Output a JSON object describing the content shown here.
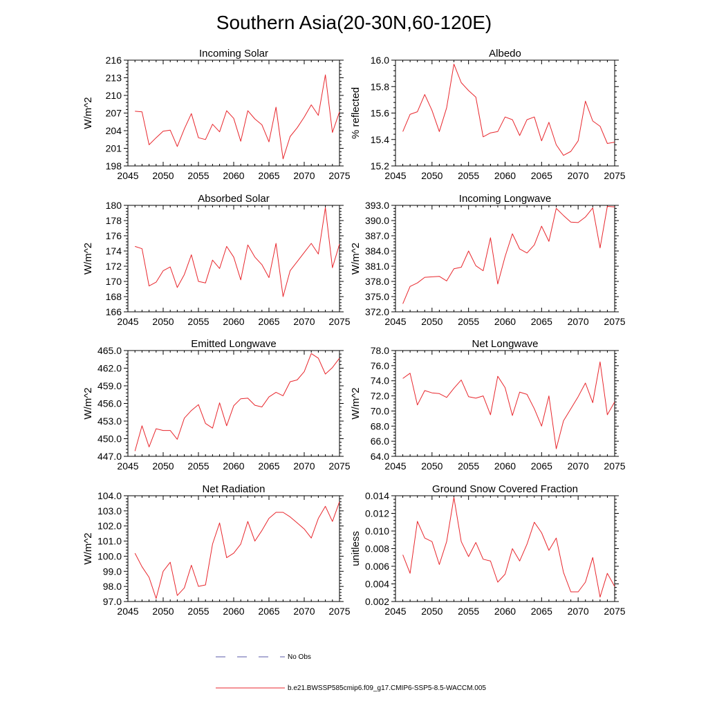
{
  "figure": {
    "title": "Southern Asia(20-30N,60-120E)",
    "series_color": "#e8262c",
    "obs_color": "#5a5aa8",
    "legend": [
      {
        "style": "dashed",
        "label": "No Obs"
      },
      {
        "style": "solid",
        "label": "b.e21.BWSSP585cmip6.f09_g17.CMIP6-SSP5-8.5-WACCM.005"
      }
    ]
  },
  "chart_data": [
    {
      "type": "line",
      "title": "Incoming Solar",
      "xlabel": "",
      "ylabel": "W/m^2",
      "xlim": [
        2045,
        2075
      ],
      "ylim": [
        198,
        216
      ],
      "xticks": [
        2045,
        2050,
        2055,
        2060,
        2065,
        2070,
        2075
      ],
      "yticks": [
        198,
        201,
        204,
        207,
        210,
        213,
        216
      ],
      "ytick_labels": [
        "198",
        "201",
        "204",
        "207",
        "210",
        "213",
        "216"
      ],
      "x": [
        2046,
        2047,
        2048,
        2049,
        2050,
        2051,
        2052,
        2053,
        2054,
        2055,
        2056,
        2057,
        2058,
        2059,
        2060,
        2061,
        2062,
        2063,
        2064,
        2065,
        2066,
        2067,
        2068,
        2069,
        2070,
        2071,
        2072,
        2073,
        2074,
        2075
      ],
      "values": [
        207.3,
        207.2,
        201.6,
        202.8,
        203.9,
        204.1,
        201.3,
        204.3,
        206.9,
        202.8,
        202.5,
        205.1,
        203.8,
        207.4,
        206.1,
        202.2,
        207.4,
        206.0,
        205.0,
        202.1,
        208.0,
        199.2,
        203.0,
        204.5,
        206.3,
        208.4,
        206.6,
        213.5,
        203.7,
        207.2
      ]
    },
    {
      "type": "line",
      "title": "Albedo",
      "xlabel": "",
      "ylabel": "% reflected",
      "xlim": [
        2045,
        2075
      ],
      "ylim": [
        15.2,
        16.0
      ],
      "xticks": [
        2045,
        2050,
        2055,
        2060,
        2065,
        2070,
        2075
      ],
      "yticks": [
        15.2,
        15.4,
        15.6,
        15.8,
        16.0
      ],
      "ytick_labels": [
        "15.2",
        "15.4",
        "15.6",
        "15.8",
        "16.0"
      ],
      "x": [
        2046,
        2047,
        2048,
        2049,
        2050,
        2051,
        2052,
        2053,
        2054,
        2055,
        2056,
        2057,
        2058,
        2059,
        2060,
        2061,
        2062,
        2063,
        2064,
        2065,
        2066,
        2067,
        2068,
        2069,
        2070,
        2071,
        2072,
        2073,
        2074,
        2075
      ],
      "values": [
        15.46,
        15.59,
        15.61,
        15.74,
        15.62,
        15.46,
        15.64,
        15.97,
        15.83,
        15.77,
        15.72,
        15.42,
        15.45,
        15.46,
        15.57,
        15.55,
        15.43,
        15.55,
        15.57,
        15.39,
        15.53,
        15.36,
        15.28,
        15.31,
        15.39,
        15.69,
        15.54,
        15.5,
        15.37,
        15.38
      ]
    },
    {
      "type": "line",
      "title": "Absorbed Solar",
      "xlabel": "",
      "ylabel": "W/m^2",
      "xlim": [
        2045,
        2075
      ],
      "ylim": [
        166,
        180
      ],
      "xticks": [
        2045,
        2050,
        2055,
        2060,
        2065,
        2070,
        2075
      ],
      "yticks": [
        166,
        168,
        170,
        172,
        174,
        176,
        178,
        180
      ],
      "ytick_labels": [
        "166",
        "168",
        "170",
        "172",
        "174",
        "176",
        "178",
        "180"
      ],
      "x": [
        2046,
        2047,
        2048,
        2049,
        2050,
        2051,
        2052,
        2053,
        2054,
        2055,
        2056,
        2057,
        2058,
        2059,
        2060,
        2061,
        2062,
        2063,
        2064,
        2065,
        2066,
        2067,
        2068,
        2069,
        2070,
        2071,
        2072,
        2073,
        2074,
        2075
      ],
      "values": [
        174.6,
        174.3,
        169.4,
        169.9,
        171.4,
        171.9,
        169.2,
        170.9,
        173.5,
        170.0,
        169.8,
        172.8,
        171.7,
        174.6,
        173.2,
        170.2,
        174.8,
        173.2,
        172.2,
        170.5,
        175.0,
        168.0,
        171.4,
        172.6,
        173.8,
        175.0,
        173.6,
        179.7,
        171.8,
        174.9
      ]
    },
    {
      "type": "line",
      "title": "Incoming Longwave",
      "xlabel": "",
      "ylabel": "W/m^2",
      "xlim": [
        2045,
        2075
      ],
      "ylim": [
        372.0,
        393.0
      ],
      "xticks": [
        2045,
        2050,
        2055,
        2060,
        2065,
        2070,
        2075
      ],
      "yticks": [
        372,
        375,
        378,
        381,
        384,
        387,
        390,
        393
      ],
      "ytick_labels": [
        "372.0",
        "375.0",
        "378.0",
        "381.0",
        "384.0",
        "387.0",
        "390.0",
        "393.0"
      ],
      "x": [
        2046,
        2047,
        2048,
        2049,
        2050,
        2051,
        2052,
        2053,
        2054,
        2055,
        2056,
        2057,
        2058,
        2059,
        2060,
        2061,
        2062,
        2063,
        2064,
        2065,
        2066,
        2067,
        2068,
        2069,
        2070,
        2071,
        2072,
        2073,
        2074,
        2075
      ],
      "values": [
        373.6,
        377.0,
        377.7,
        378.8,
        378.9,
        379.0,
        378.1,
        380.5,
        380.8,
        384.0,
        381.1,
        380.1,
        386.6,
        377.5,
        382.9,
        387.4,
        384.4,
        383.6,
        385.2,
        388.9,
        385.9,
        392.4,
        391.0,
        389.7,
        389.6,
        390.7,
        392.5,
        384.6,
        392.8,
        392.7
      ]
    },
    {
      "type": "line",
      "title": "Emitted Longwave",
      "xlabel": "",
      "ylabel": "W/m^2",
      "xlim": [
        2045,
        2075
      ],
      "ylim": [
        447.0,
        465.0
      ],
      "xticks": [
        2045,
        2050,
        2055,
        2060,
        2065,
        2070,
        2075
      ],
      "yticks": [
        447,
        450,
        453,
        456,
        459,
        462,
        465
      ],
      "ytick_labels": [
        "447.0",
        "450.0",
        "453.0",
        "456.0",
        "459.0",
        "462.0",
        "465.0"
      ],
      "x": [
        2046,
        2047,
        2048,
        2049,
        2050,
        2051,
        2052,
        2053,
        2054,
        2055,
        2056,
        2057,
        2058,
        2059,
        2060,
        2061,
        2062,
        2063,
        2064,
        2065,
        2066,
        2067,
        2068,
        2069,
        2070,
        2071,
        2072,
        2073,
        2074,
        2075
      ],
      "values": [
        447.9,
        452.2,
        448.6,
        451.7,
        451.4,
        451.4,
        449.9,
        453.5,
        454.8,
        455.8,
        452.6,
        451.8,
        456.1,
        452.2,
        455.6,
        456.8,
        456.9,
        455.7,
        455.4,
        457.1,
        457.9,
        457.3,
        459.7,
        460.0,
        461.4,
        464.5,
        463.7,
        461.0,
        462.1,
        463.7
      ]
    },
    {
      "type": "line",
      "title": "Net Longwave",
      "xlabel": "",
      "ylabel": "W/m^2",
      "xlim": [
        2045,
        2075
      ],
      "ylim": [
        64.0,
        78.0
      ],
      "xticks": [
        2045,
        2050,
        2055,
        2060,
        2065,
        2070,
        2075
      ],
      "yticks": [
        64,
        66,
        68,
        70,
        72,
        74,
        76,
        78
      ],
      "ytick_labels": [
        "64.0",
        "66.0",
        "68.0",
        "70.0",
        "72.0",
        "74.0",
        "76.0",
        "78.0"
      ],
      "x": [
        2046,
        2047,
        2048,
        2049,
        2050,
        2051,
        2052,
        2053,
        2054,
        2055,
        2056,
        2057,
        2058,
        2059,
        2060,
        2061,
        2062,
        2063,
        2064,
        2065,
        2066,
        2067,
        2068,
        2069,
        2070,
        2071,
        2072,
        2073,
        2074,
        2075
      ],
      "values": [
        74.3,
        75.0,
        70.8,
        72.7,
        72.4,
        72.3,
        71.8,
        73.0,
        74.1,
        71.9,
        71.7,
        72.0,
        69.5,
        74.6,
        73.1,
        69.4,
        72.5,
        72.2,
        70.3,
        68.0,
        72.0,
        65.0,
        68.7,
        70.3,
        71.9,
        73.7,
        71.1,
        76.5,
        69.5,
        71.2
      ]
    },
    {
      "type": "line",
      "title": "Net Radiation",
      "xlabel": "",
      "ylabel": "W/m^2",
      "xlim": [
        2045,
        2075
      ],
      "ylim": [
        97.0,
        104.0
      ],
      "xticks": [
        2045,
        2050,
        2055,
        2060,
        2065,
        2070,
        2075
      ],
      "yticks": [
        97,
        98,
        99,
        100,
        101,
        102,
        103,
        104
      ],
      "ytick_labels": [
        "97.0",
        "98.0",
        "99.0",
        "100.0",
        "101.0",
        "102.0",
        "103.0",
        "104.0"
      ],
      "x": [
        2046,
        2047,
        2048,
        2049,
        2050,
        2051,
        2052,
        2053,
        2054,
        2055,
        2056,
        2057,
        2058,
        2059,
        2060,
        2061,
        2062,
        2063,
        2064,
        2065,
        2066,
        2067,
        2068,
        2069,
        2070,
        2071,
        2072,
        2073,
        2074,
        2075
      ],
      "values": [
        100.2,
        99.3,
        98.6,
        97.2,
        99.0,
        99.6,
        97.4,
        97.9,
        99.4,
        98.0,
        98.1,
        100.8,
        102.2,
        99.9,
        100.2,
        100.8,
        102.3,
        101.0,
        101.7,
        102.5,
        102.9,
        102.9,
        102.6,
        102.2,
        101.8,
        101.2,
        102.5,
        103.3,
        102.3,
        103.6
      ]
    },
    {
      "type": "line",
      "title": "Ground Snow Covered Fraction",
      "xlabel": "",
      "ylabel": "unitless",
      "xlim": [
        2045,
        2075
      ],
      "ylim": [
        0.002,
        0.014
      ],
      "xticks": [
        2045,
        2050,
        2055,
        2060,
        2065,
        2070,
        2075
      ],
      "yticks": [
        0.002,
        0.004,
        0.006,
        0.008,
        0.01,
        0.012,
        0.014
      ],
      "ytick_labels": [
        "0.002",
        "0.004",
        "0.006",
        "0.008",
        "0.010",
        "0.012",
        "0.014"
      ],
      "x": [
        2046,
        2047,
        2048,
        2049,
        2050,
        2051,
        2052,
        2053,
        2054,
        2055,
        2056,
        2057,
        2058,
        2059,
        2060,
        2061,
        2062,
        2063,
        2064,
        2065,
        2066,
        2067,
        2068,
        2069,
        2070,
        2071,
        2072,
        2073,
        2074,
        2075
      ],
      "values": [
        0.0073,
        0.0052,
        0.0111,
        0.0092,
        0.0088,
        0.0062,
        0.0088,
        0.0138,
        0.0088,
        0.0071,
        0.0087,
        0.0068,
        0.0066,
        0.0042,
        0.0051,
        0.008,
        0.0066,
        0.0085,
        0.011,
        0.0098,
        0.0078,
        0.0092,
        0.0053,
        0.0031,
        0.0031,
        0.0042,
        0.007,
        0.0025,
        0.0052,
        0.0037
      ]
    }
  ]
}
